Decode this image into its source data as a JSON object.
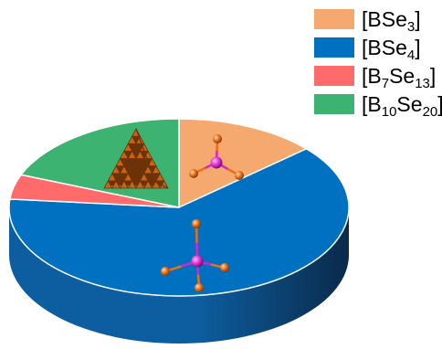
{
  "chart_data": {
    "type": "pie",
    "style": "3d",
    "legend_position": "top-right",
    "slices": [
      {
        "name_parts": [
          [
            "[BSe",
            ""
          ],
          [
            "3",
            "sub"
          ],
          [
            "]",
            ""
          ]
        ],
        "value": 13.5,
        "color": "#f5a96e",
        "side_color": "#c88650"
      },
      {
        "name_parts": [
          [
            "[BSe",
            ""
          ],
          [
            "4",
            "sub"
          ],
          [
            "]",
            ""
          ]
        ],
        "value": 63.0,
        "color": "#0070c0",
        "side_color": "#0d5ea0"
      },
      {
        "name_parts": [
          [
            "[B",
            ""
          ],
          [
            "7",
            "sub"
          ],
          [
            "Se",
            ""
          ],
          [
            "13",
            "sub"
          ],
          [
            "]",
            ""
          ]
        ],
        "value": 4.5,
        "color": "#ff6b6b",
        "side_color": "#c44f4f"
      },
      {
        "name_parts": [
          [
            "[B",
            ""
          ],
          [
            "10",
            "sub"
          ],
          [
            "Se",
            ""
          ],
          [
            "20",
            "sub"
          ],
          [
            "]",
            ""
          ]
        ],
        "value": 19.0,
        "color": "#3cb371",
        "side_color": "#2a8a55"
      }
    ]
  },
  "illustrations": {
    "molecule_color_center": "#d426c8",
    "molecule_color_atom": "#e8701a",
    "molecule_bond_color": "#9a9a9a",
    "cluster_color": "#c86414",
    "cluster_dark": "#6e3208"
  }
}
